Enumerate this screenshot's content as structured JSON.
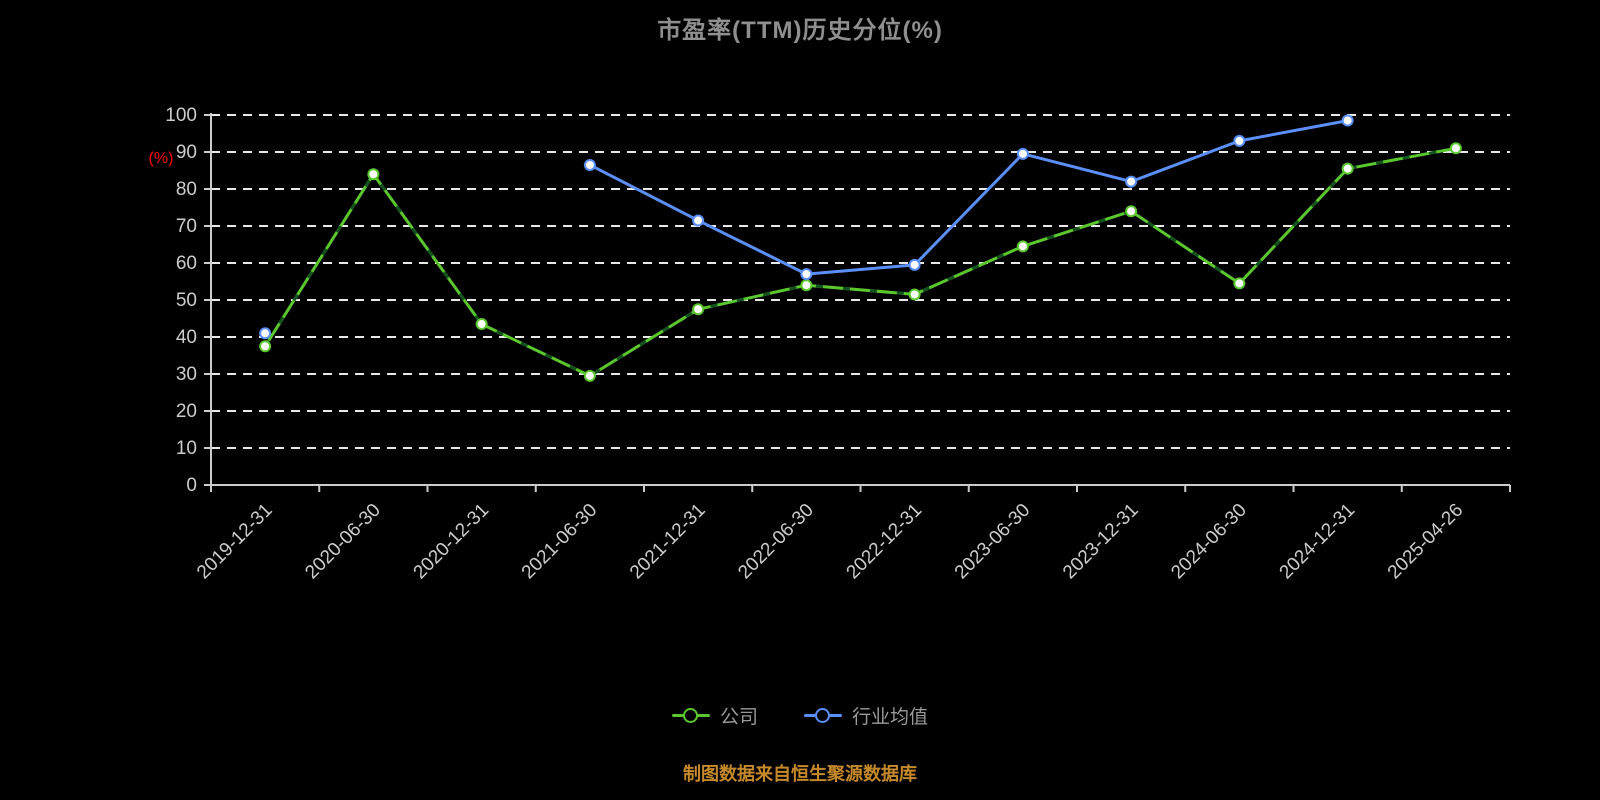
{
  "title": "市盈率(TTM)历史分位(%)",
  "colors": {
    "background": "#000000",
    "title": "#8f8f8f",
    "company": "#5bc72e",
    "company_dash": "#14521f",
    "industry": "#5b8ff9",
    "grid": "#e8e8e8",
    "axis": "#cccccc",
    "tick_label": "#cccccc",
    "ylabel": "#ff0000",
    "legend_text": "#999999",
    "footer": "#c5892b",
    "marker_fill": "#ffffff"
  },
  "chart_data": {
    "type": "line",
    "title": "市盈率(TTM)历史分位(%)",
    "xlabel": "",
    "ylabel": "(%)",
    "ylim": [
      0,
      100
    ],
    "ytick_step": 10,
    "grid": "dashed-horizontal",
    "legend_position": "bottom",
    "categories": [
      "2019-12-31",
      "2020-06-30",
      "2020-12-31",
      "2021-06-30",
      "2021-12-31",
      "2022-06-30",
      "2022-12-31",
      "2023-06-30",
      "2023-12-31",
      "2024-06-30",
      "2024-12-31",
      "2025-04-26"
    ],
    "series": [
      {
        "name": "公司",
        "color_key": "company",
        "dash_overlay": true,
        "values": [
          37.5,
          84,
          43.5,
          29.5,
          47.5,
          54,
          51.5,
          64.5,
          74,
          54.5,
          85.5,
          91
        ]
      },
      {
        "name": "行业均值",
        "color_key": "industry",
        "dash_overlay": false,
        "values": [
          41,
          null,
          null,
          86.5,
          71.5,
          57,
          59.5,
          89.5,
          82,
          93,
          98.5,
          null
        ]
      }
    ]
  },
  "legend": {
    "items": [
      {
        "label": "公司"
      },
      {
        "label": "行业均值"
      }
    ]
  },
  "footer": {
    "text": "制图数据来自恒生聚源数据库"
  }
}
